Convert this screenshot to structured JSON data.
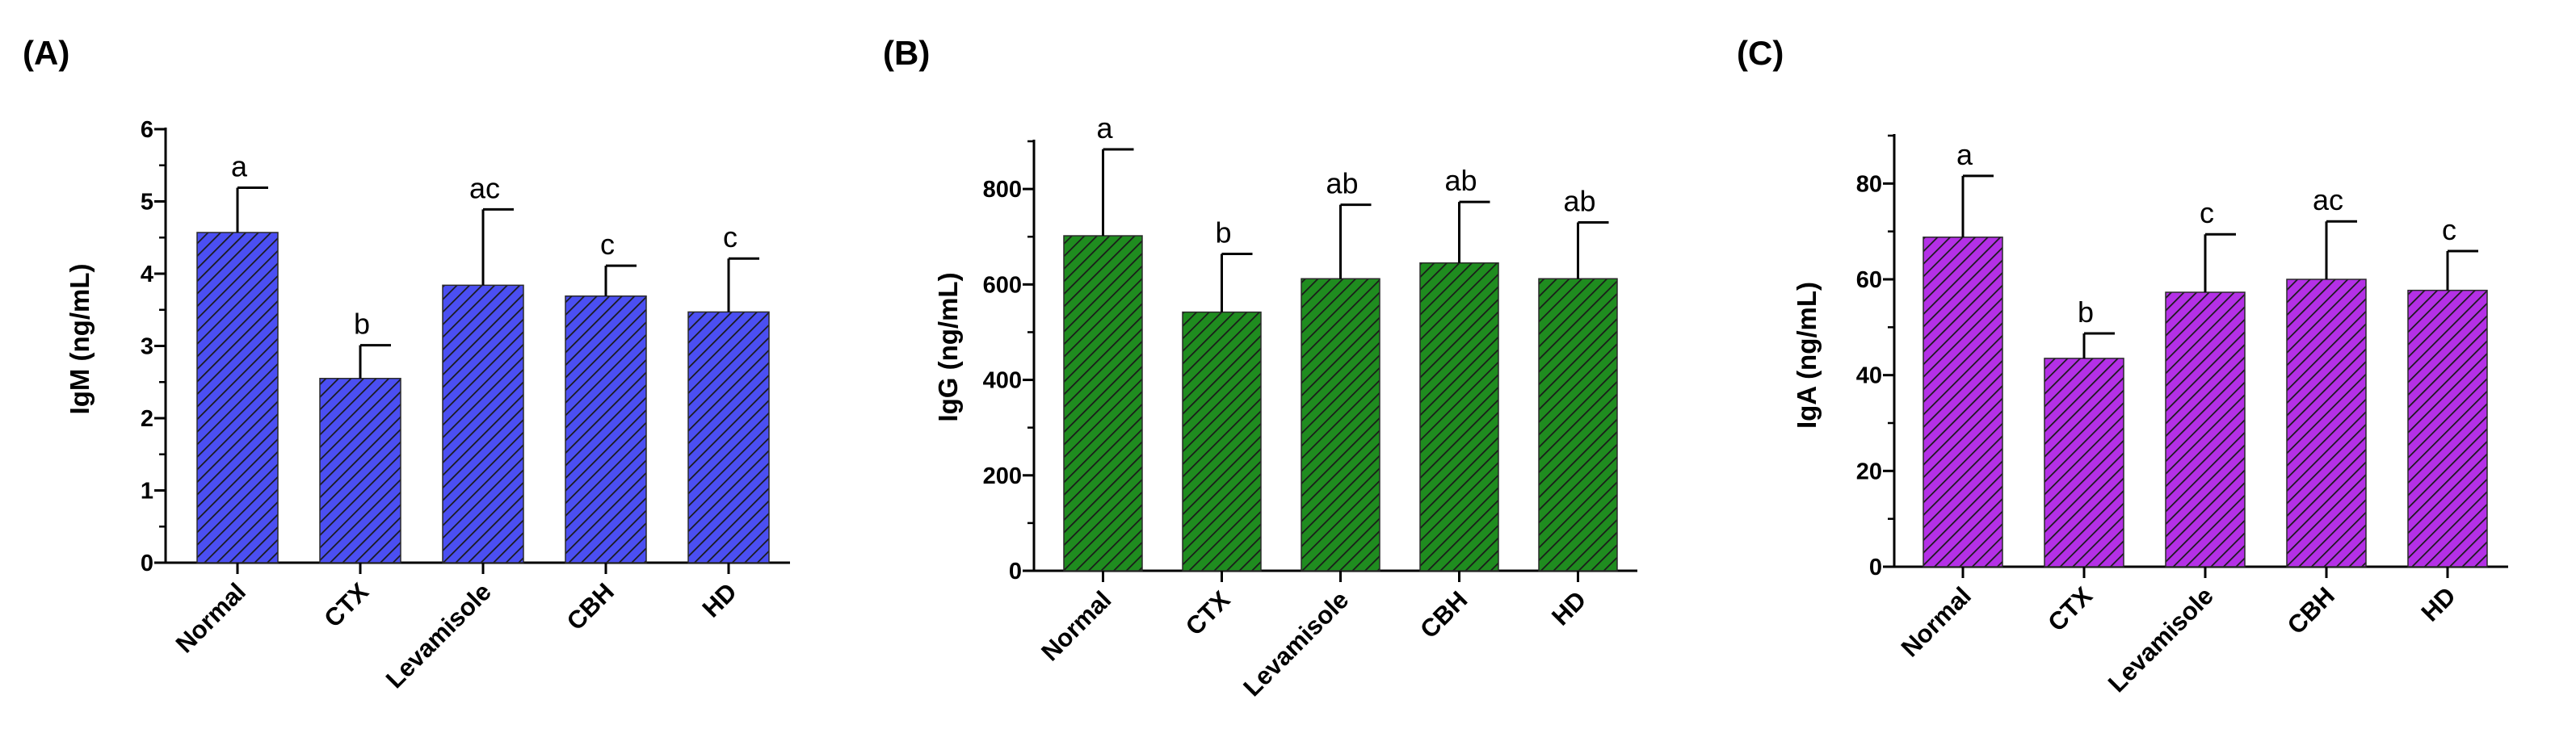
{
  "chart_data": [
    {
      "type": "bar",
      "panel": "(A)",
      "ylabel": "IgM (ng/mL)",
      "ylim": [
        0,
        6
      ],
      "yticks": [
        "0",
        "1",
        "2",
        "3",
        "4",
        "5",
        "6"
      ],
      "categories": [
        "Normal",
        "CTX",
        "Levamisole",
        "CBH",
        "HD"
      ],
      "series": [
        {
          "values": [
            4.57,
            2.55,
            3.84,
            3.69,
            3.47
          ],
          "errors": [
            0.62,
            0.46,
            1.05,
            0.42,
            0.74
          ],
          "significance": [
            "a",
            "b",
            "ac",
            "c",
            "c"
          ]
        }
      ],
      "fill_color": "#4b4ff2",
      "pattern": "diagonal-hatch"
    },
    {
      "type": "bar",
      "panel": "(B)",
      "ylabel": "IgG (ng/mL)",
      "ylim": [
        0,
        900
      ],
      "yticks": [
        "0",
        "200",
        "400",
        "600",
        "800"
      ],
      "categories": [
        "Normal",
        "CTX",
        "Levamisole",
        "CBH",
        "HD"
      ],
      "series": [
        {
          "values": [
            702,
            542,
            612,
            645,
            612
          ],
          "errors": [
            181,
            122,
            155,
            128,
            118
          ],
          "significance": [
            "a",
            "b",
            "ab",
            "ab",
            "ab"
          ]
        }
      ],
      "fill_color": "#1f8c1f",
      "pattern": "diagonal-hatch"
    },
    {
      "type": "bar",
      "panel": "(C)",
      "ylabel": "IgA (ng/mL)",
      "ylim": [
        0,
        90
      ],
      "yticks": [
        "0",
        "20",
        "40",
        "60",
        "80"
      ],
      "categories": [
        "Normal",
        "CTX",
        "Levamisole",
        "CBH",
        "HD"
      ],
      "series": [
        {
          "values": [
            68.8,
            43.5,
            57.3,
            60.0,
            57.7
          ],
          "errors": [
            12.8,
            5.2,
            12.1,
            12.1,
            8.2
          ],
          "significance": [
            "a",
            "b",
            "c",
            "ac",
            "c"
          ]
        }
      ],
      "fill_color": "#b430e6",
      "pattern": "diagonal-hatch"
    }
  ]
}
